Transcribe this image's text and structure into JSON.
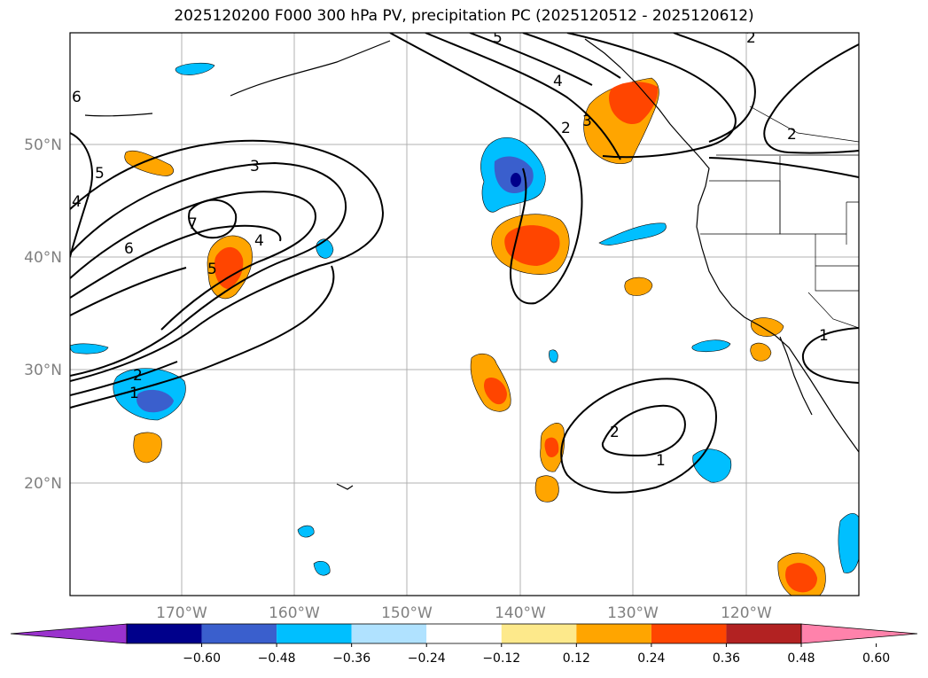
{
  "title": "2025120200 F000 300 hPa PV, precipitation PC (2025120512 - 2025120612)",
  "map": {
    "lat_labels": [
      "50°N",
      "40°N",
      "30°N",
      "20°N"
    ],
    "lon_labels": [
      "170°W",
      "160°W",
      "150°W",
      "140°W",
      "130°W",
      "120°W"
    ],
    "contour_labels": [
      "3",
      "4",
      "5",
      "6",
      "7",
      "5",
      "6",
      "4",
      "2",
      "1",
      "5",
      "4",
      "2",
      "3",
      "2",
      "2",
      "1",
      "1",
      "2"
    ]
  },
  "colorbar": {
    "ticks": [
      "−0.60",
      "−0.48",
      "−0.36",
      "−0.24",
      "−0.12",
      "0.12",
      "0.24",
      "0.36",
      "0.48",
      "0.60"
    ],
    "colors": [
      "#9a32cd",
      "#00008b",
      "#3a5fcd",
      "#00bfff",
      "#b0e2ff",
      "#ffffff",
      "#fde98b",
      "#ffa500",
      "#ff4500",
      "#b22222",
      "#ff82ab"
    ]
  }
}
